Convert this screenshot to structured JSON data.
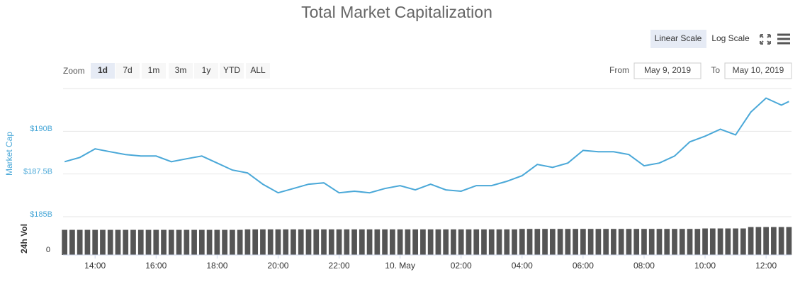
{
  "controls": {
    "scale_buttons": [
      "Linear Scale",
      "Log Scale"
    ],
    "zoom_label": "Zoom",
    "zoom_buttons": [
      "1d",
      "7d",
      "1m",
      "3m",
      "1y",
      "YTD",
      "ALL"
    ],
    "from_label": "From",
    "from": "May 9, 2019",
    "to_label": "To",
    "to": "May 10, 2019"
  },
  "chart_data": [
    {
      "type": "line",
      "title": "Total Market Capitalization",
      "y_label": "Market Cap",
      "color": "#4aa8d8",
      "x": [
        "2019-05-09T13:00",
        "2019-05-09T13:30",
        "2019-05-09T14:00",
        "2019-05-09T14:30",
        "2019-05-09T15:00",
        "2019-05-09T15:30",
        "2019-05-09T16:00",
        "2019-05-09T16:30",
        "2019-05-09T17:00",
        "2019-05-09T17:30",
        "2019-05-09T18:00",
        "2019-05-09T18:30",
        "2019-05-09T19:00",
        "2019-05-09T19:30",
        "2019-05-09T20:00",
        "2019-05-09T20:30",
        "2019-05-09T21:00",
        "2019-05-09T21:30",
        "2019-05-09T22:00",
        "2019-05-09T22:30",
        "2019-05-09T23:00",
        "2019-05-09T23:30",
        "2019-05-10T00:00",
        "2019-05-10T00:30",
        "2019-05-10T01:00",
        "2019-05-10T01:30",
        "2019-05-10T02:00",
        "2019-05-10T02:30",
        "2019-05-10T03:00",
        "2019-05-10T03:30",
        "2019-05-10T04:00",
        "2019-05-10T04:30",
        "2019-05-10T05:00",
        "2019-05-10T05:30",
        "2019-05-10T06:00",
        "2019-05-10T06:30",
        "2019-05-10T07:00",
        "2019-05-10T07:30",
        "2019-05-10T08:00",
        "2019-05-10T08:30",
        "2019-05-10T09:00",
        "2019-05-10T09:30",
        "2019-05-10T10:00",
        "2019-05-10T10:30",
        "2019-05-10T11:00",
        "2019-05-10T11:30",
        "2019-05-10T12:00",
        "2019-05-10T12:30",
        "2019-05-10T12:45"
      ],
      "values": [
        188.22,
        188.47,
        188.97,
        188.8,
        188.64,
        188.55,
        188.55,
        188.22,
        188.39,
        188.55,
        188.14,
        187.73,
        187.56,
        186.9,
        186.4,
        186.65,
        186.9,
        186.98,
        186.4,
        186.49,
        186.4,
        186.65,
        186.82,
        186.57,
        186.9,
        186.57,
        186.49,
        186.82,
        186.82,
        187.07,
        187.4,
        188.06,
        187.89,
        188.14,
        188.88,
        188.8,
        188.8,
        188.64,
        187.98,
        188.14,
        188.55,
        189.38,
        189.71,
        190.12,
        189.79,
        191.12,
        191.94,
        191.53,
        191.74
      ],
      "xlim": [
        "2019-05-09T12:57",
        "2019-05-10T12:50"
      ],
      "ylim": [
        185,
        192.5
      ],
      "yticks": [
        {
          "value": 185,
          "label": "$185B"
        },
        {
          "value": 187.5,
          "label": "$187.5B"
        },
        {
          "value": 190,
          "label": "$190B"
        },
        {
          "value": 192.5,
          "label": ""
        }
      ],
      "grid": true
    },
    {
      "type": "bar",
      "y_label": "24h Vol",
      "color": "#555555",
      "x": [
        "2019-05-09T13:00",
        "2019-05-09T13:15",
        "2019-05-09T13:30",
        "2019-05-09T13:45",
        "2019-05-09T14:00",
        "2019-05-09T14:15",
        "2019-05-09T14:30",
        "2019-05-09T14:45",
        "2019-05-09T15:00",
        "2019-05-09T15:15",
        "2019-05-09T15:30",
        "2019-05-09T15:45",
        "2019-05-09T16:00",
        "2019-05-09T16:15",
        "2019-05-09T16:30",
        "2019-05-09T16:45",
        "2019-05-09T17:00",
        "2019-05-09T17:15",
        "2019-05-09T17:30",
        "2019-05-09T17:45",
        "2019-05-09T18:00",
        "2019-05-09T18:15",
        "2019-05-09T18:30",
        "2019-05-09T18:45",
        "2019-05-09T19:00",
        "2019-05-09T19:15",
        "2019-05-09T19:30",
        "2019-05-09T19:45",
        "2019-05-09T20:00",
        "2019-05-09T20:15",
        "2019-05-09T20:30",
        "2019-05-09T20:45",
        "2019-05-09T21:00",
        "2019-05-09T21:15",
        "2019-05-09T21:30",
        "2019-05-09T21:45",
        "2019-05-09T22:00",
        "2019-05-09T22:15",
        "2019-05-09T22:30",
        "2019-05-09T22:45",
        "2019-05-09T23:00",
        "2019-05-09T23:15",
        "2019-05-09T23:30",
        "2019-05-09T23:45",
        "2019-05-10T00:00",
        "2019-05-10T00:15",
        "2019-05-10T00:30",
        "2019-05-10T00:45",
        "2019-05-10T01:00",
        "2019-05-10T01:15",
        "2019-05-10T01:30",
        "2019-05-10T01:45",
        "2019-05-10T02:00",
        "2019-05-10T02:15",
        "2019-05-10T02:30",
        "2019-05-10T02:45",
        "2019-05-10T03:00",
        "2019-05-10T03:15",
        "2019-05-10T03:30",
        "2019-05-10T03:45",
        "2019-05-10T04:00",
        "2019-05-10T04:15",
        "2019-05-10T04:30",
        "2019-05-10T04:45",
        "2019-05-10T05:00",
        "2019-05-10T05:15",
        "2019-05-10T05:30",
        "2019-05-10T05:45",
        "2019-05-10T06:00",
        "2019-05-10T06:15",
        "2019-05-10T06:30",
        "2019-05-10T06:45",
        "2019-05-10T07:00",
        "2019-05-10T07:15",
        "2019-05-10T07:30",
        "2019-05-10T07:45",
        "2019-05-10T08:00",
        "2019-05-10T08:15",
        "2019-05-10T08:30",
        "2019-05-10T08:45",
        "2019-05-10T09:00",
        "2019-05-10T09:15",
        "2019-05-10T09:30",
        "2019-05-10T09:45",
        "2019-05-10T10:00",
        "2019-05-10T10:15",
        "2019-05-10T10:30",
        "2019-05-10T10:45",
        "2019-05-10T11:00",
        "2019-05-10T11:15",
        "2019-05-10T11:30",
        "2019-05-10T11:45",
        "2019-05-10T12:00",
        "2019-05-10T12:15",
        "2019-05-10T12:30",
        "2019-05-10T12:45"
      ],
      "values": [
        54,
        54,
        54,
        54,
        54,
        54,
        54,
        54,
        54,
        54,
        54,
        54,
        54,
        54,
        54,
        54,
        54,
        54,
        54,
        54,
        54,
        54,
        54,
        54,
        55,
        55,
        55,
        55,
        55,
        55,
        55,
        55,
        55,
        55,
        55,
        55,
        55,
        55,
        55,
        55,
        55,
        55,
        55,
        55,
        55,
        55,
        55,
        55,
        55,
        55,
        55,
        55,
        55,
        55,
        55,
        55,
        55,
        55,
        55,
        55,
        56,
        56,
        56,
        56,
        56,
        56,
        56,
        56,
        56,
        56,
        56,
        56,
        56,
        56,
        56,
        56,
        56,
        56,
        56,
        56,
        56,
        56,
        56,
        56,
        57,
        57,
        57,
        57,
        57,
        57,
        60,
        60,
        60,
        60,
        60,
        60
      ],
      "xlim": [
        "2019-05-09T12:57",
        "2019-05-10T12:50"
      ],
      "ylim": [
        0,
        70
      ],
      "yticks": [
        0
      ],
      "xticks": [
        {
          "value": "2019-05-09T14:00",
          "label": "14:00"
        },
        {
          "value": "2019-05-09T16:00",
          "label": "16:00"
        },
        {
          "value": "2019-05-09T18:00",
          "label": "18:00"
        },
        {
          "value": "2019-05-09T20:00",
          "label": "20:00"
        },
        {
          "value": "2019-05-09T22:00",
          "label": "22:00"
        },
        {
          "value": "2019-05-10T00:00",
          "label": "10. May"
        },
        {
          "value": "2019-05-10T02:00",
          "label": "02:00"
        },
        {
          "value": "2019-05-10T04:00",
          "label": "04:00"
        },
        {
          "value": "2019-05-10T06:00",
          "label": "06:00"
        },
        {
          "value": "2019-05-10T08:00",
          "label": "08:00"
        },
        {
          "value": "2019-05-10T10:00",
          "label": "10:00"
        },
        {
          "value": "2019-05-10T12:00",
          "label": "12:00"
        }
      ]
    }
  ]
}
